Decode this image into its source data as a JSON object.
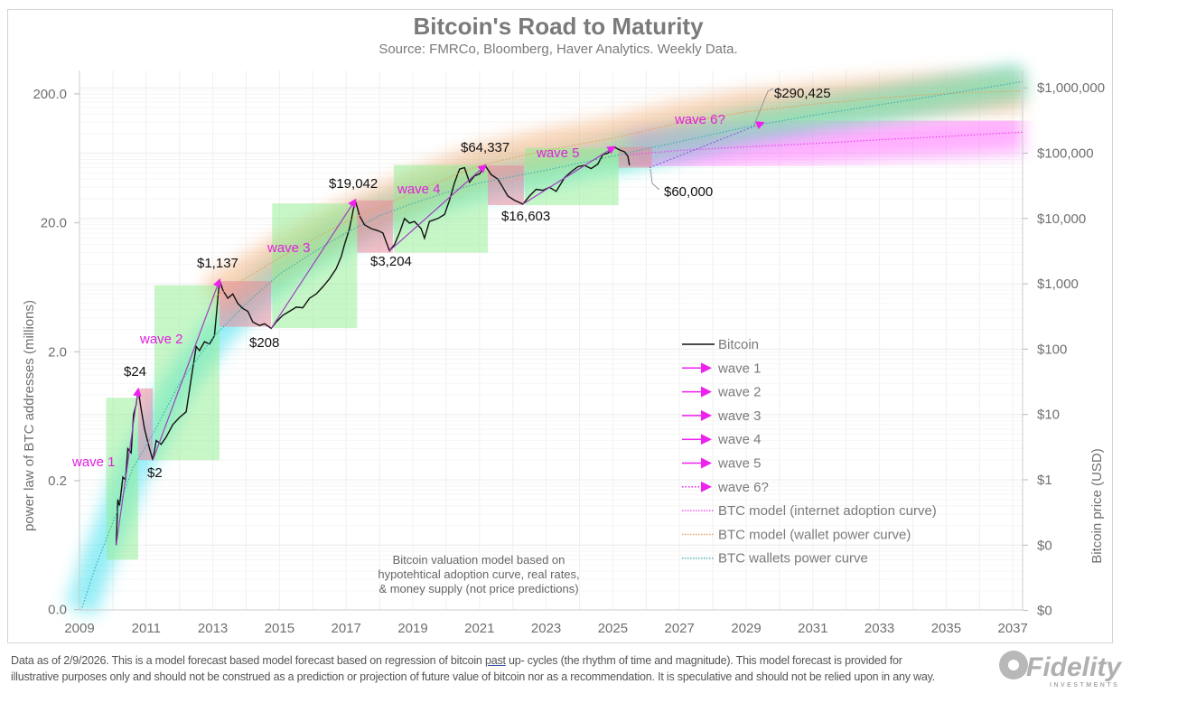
{
  "chart_data": {
    "type": "line",
    "title": "Bitcoin's Road to Maturity",
    "subtitle": "Source: FMRCo, Bloomberg, Haver Analytics. Weekly Data.",
    "xlabel": "",
    "ylabel_left": "power law of BTC addresses (millions)",
    "ylabel_right": "Bitcoin price (USD)",
    "x_ticks": [
      "2009",
      "2011",
      "2013",
      "2015",
      "2017",
      "2019",
      "2021",
      "2023",
      "2025",
      "2027",
      "2029",
      "2031",
      "2033",
      "2035",
      "2037"
    ],
    "xlim": [
      2009,
      2037.3
    ],
    "y_right_scale": "log",
    "y_right_ticks": [
      {
        "value": 0.01,
        "label": "$0"
      },
      {
        "value": 0.1,
        "label": "$0"
      },
      {
        "value": 1,
        "label": "$1"
      },
      {
        "value": 10,
        "label": "$10"
      },
      {
        "value": 100,
        "label": "$100"
      },
      {
        "value": 1000,
        "label": "$1,000"
      },
      {
        "value": 10000,
        "label": "$10,000"
      },
      {
        "value": 100000,
        "label": "$100,000"
      },
      {
        "value": 1000000,
        "label": "$1,000,000"
      }
    ],
    "y_left_scale": "log",
    "y_left_ticks": [
      {
        "value": 0.02,
        "label": "0.0"
      },
      {
        "value": 0.2,
        "label": "0.2"
      },
      {
        "value": 2,
        "label": "2.0"
      },
      {
        "value": 20,
        "label": "20.0"
      },
      {
        "value": 200,
        "label": "200.0"
      }
    ],
    "grid": true,
    "legend_position": "right-middle",
    "series": [
      {
        "name": "Bitcoin",
        "color": "#111111",
        "style": "solid",
        "points": [
          [
            2010.1,
            0.1
          ],
          [
            2010.15,
            0.5
          ],
          [
            2010.2,
            0.4
          ],
          [
            2010.3,
            1.1
          ],
          [
            2010.38,
            1.0
          ],
          [
            2010.45,
            3
          ],
          [
            2010.55,
            2.6
          ],
          [
            2010.62,
            10
          ],
          [
            2010.7,
            14
          ],
          [
            2010.76,
            24
          ],
          [
            2010.85,
            12
          ],
          [
            2010.95,
            6
          ],
          [
            2011.1,
            3
          ],
          [
            2011.2,
            2
          ],
          [
            2011.3,
            4
          ],
          [
            2011.45,
            3.5
          ],
          [
            2011.6,
            4.5
          ],
          [
            2011.8,
            7
          ],
          [
            2012.0,
            9
          ],
          [
            2012.2,
            11
          ],
          [
            2012.35,
            35
          ],
          [
            2012.5,
            110
          ],
          [
            2012.6,
            95
          ],
          [
            2012.75,
            130
          ],
          [
            2012.9,
            120
          ],
          [
            2013.05,
            160
          ],
          [
            2013.2,
            1137
          ],
          [
            2013.3,
            800
          ],
          [
            2013.45,
            600
          ],
          [
            2013.6,
            700
          ],
          [
            2013.75,
            500
          ],
          [
            2013.9,
            420
          ],
          [
            2014.05,
            380
          ],
          [
            2014.2,
            260
          ],
          [
            2014.4,
            230
          ],
          [
            2014.55,
            245
          ],
          [
            2014.75,
            208
          ],
          [
            2014.9,
            260
          ],
          [
            2015.1,
            330
          ],
          [
            2015.3,
            380
          ],
          [
            2015.5,
            440
          ],
          [
            2015.7,
            430
          ],
          [
            2015.9,
            600
          ],
          [
            2016.1,
            700
          ],
          [
            2016.3,
            900
          ],
          [
            2016.5,
            1200
          ],
          [
            2016.7,
            1700
          ],
          [
            2016.85,
            2600
          ],
          [
            2016.95,
            4000
          ],
          [
            2017.1,
            7000
          ],
          [
            2017.27,
            19042
          ],
          [
            2017.4,
            11000
          ],
          [
            2017.55,
            8000
          ],
          [
            2017.75,
            7000
          ],
          [
            2017.95,
            6500
          ],
          [
            2018.1,
            6000
          ],
          [
            2018.3,
            3204
          ],
          [
            2018.45,
            4000
          ],
          [
            2018.6,
            6000
          ],
          [
            2018.75,
            10000
          ],
          [
            2018.9,
            8500
          ],
          [
            2019.05,
            9000
          ],
          [
            2019.25,
            7000
          ],
          [
            2019.35,
            5000
          ],
          [
            2019.5,
            9000
          ],
          [
            2019.75,
            10000
          ],
          [
            2019.95,
            11500
          ],
          [
            2020.1,
            19000
          ],
          [
            2020.25,
            35000
          ],
          [
            2020.4,
            57000
          ],
          [
            2020.55,
            60000
          ],
          [
            2020.7,
            36000
          ],
          [
            2020.85,
            45000
          ],
          [
            2021.0,
            48000
          ],
          [
            2021.17,
            64337
          ],
          [
            2021.35,
            47000
          ],
          [
            2021.55,
            40000
          ],
          [
            2021.7,
            30000
          ],
          [
            2021.85,
            22000
          ],
          [
            2022.05,
            19000
          ],
          [
            2022.3,
            16603
          ],
          [
            2022.5,
            22000
          ],
          [
            2022.7,
            28000
          ],
          [
            2022.9,
            27000
          ],
          [
            2023.1,
            30000
          ],
          [
            2023.3,
            26000
          ],
          [
            2023.55,
            42000
          ],
          [
            2023.75,
            52000
          ],
          [
            2023.95,
            62000
          ],
          [
            2024.15,
            65000
          ],
          [
            2024.35,
            58000
          ],
          [
            2024.55,
            68000
          ],
          [
            2024.7,
            95000
          ],
          [
            2024.85,
            100000
          ],
          [
            2025.04,
            124000
          ],
          [
            2025.2,
            112000
          ],
          [
            2025.35,
            105000
          ],
          [
            2025.45,
            90000
          ],
          [
            2025.5,
            65000
          ]
        ]
      },
      {
        "name": "BTC model (internet adoption curve)",
        "color": "#ee44ee",
        "style": "dotted",
        "points": [
          [
            2025.5,
            95000
          ],
          [
            2027,
            110000
          ],
          [
            2029,
            125000
          ],
          [
            2031,
            140000
          ],
          [
            2033,
            160000
          ],
          [
            2035,
            180000
          ],
          [
            2037.3,
            210000
          ]
        ]
      },
      {
        "name": "BTC model (wallet power curve)",
        "color": "#e8a060",
        "style": "dotted",
        "points": [
          [
            2013,
            600
          ],
          [
            2015,
            2500
          ],
          [
            2017,
            9000
          ],
          [
            2019,
            25000
          ],
          [
            2021,
            65000
          ],
          [
            2023,
            110000
          ],
          [
            2025,
            170000
          ],
          [
            2027,
            290425
          ],
          [
            2029,
            430000
          ],
          [
            2031,
            560000
          ],
          [
            2033,
            700000
          ],
          [
            2035,
            820000
          ],
          [
            2037.3,
            900000
          ]
        ]
      },
      {
        "name": "BTC wallets power curve",
        "color": "#40b0b0",
        "style": "dotted",
        "points": [
          [
            2009.05,
            0.01
          ],
          [
            2009.5,
            0.05
          ],
          [
            2010.1,
            0.3
          ],
          [
            2010.6,
            1.5
          ],
          [
            2011.2,
            5
          ],
          [
            2012,
            30
          ],
          [
            2013,
            150
          ],
          [
            2014,
            500
          ],
          [
            2015,
            1400
          ],
          [
            2016,
            3000
          ],
          [
            2017,
            6000
          ],
          [
            2018,
            11000
          ],
          [
            2019,
            17000
          ],
          [
            2020,
            25000
          ],
          [
            2021,
            35000
          ],
          [
            2023,
            55000
          ],
          [
            2025,
            90000
          ],
          [
            2027,
            150000
          ],
          [
            2029,
            250000
          ],
          [
            2031,
            380000
          ],
          [
            2033,
            550000
          ],
          [
            2035,
            800000
          ],
          [
            2037.3,
            1250000
          ]
        ]
      }
    ],
    "waves": [
      {
        "name": "wave 1",
        "from": [
          2010.1,
          0.1
        ],
        "to": [
          2010.76,
          24
        ],
        "style": "solid"
      },
      {
        "name": "wave 2",
        "from": [
          2011.2,
          2
        ],
        "to": [
          2013.2,
          1137
        ],
        "style": "solid"
      },
      {
        "name": "wave 3",
        "from": [
          2014.75,
          208
        ],
        "to": [
          2017.27,
          19042
        ],
        "style": "solid"
      },
      {
        "name": "wave 4",
        "from": [
          2018.3,
          3204
        ],
        "to": [
          2021.17,
          64337
        ],
        "style": "solid"
      },
      {
        "name": "wave 5",
        "from": [
          2022.3,
          16603
        ],
        "to": [
          2025.04,
          124000
        ],
        "style": "solid"
      },
      {
        "name": "wave 6?",
        "from": [
          2026.1,
          60000
        ],
        "to": [
          2029.5,
          290425
        ],
        "style": "dotted"
      }
    ],
    "phases": [
      {
        "kind": "up",
        "x": [
          2009.8,
          2010.76
        ],
        "y": [
          0.06,
          18
        ]
      },
      {
        "kind": "down",
        "x": [
          2010.76,
          2011.2
        ],
        "y": [
          2,
          25
        ]
      },
      {
        "kind": "up",
        "x": [
          2011.25,
          2013.2
        ],
        "y": [
          2,
          950
        ]
      },
      {
        "kind": "down",
        "x": [
          2013.2,
          2014.75
        ],
        "y": [
          220,
          1100
        ]
      },
      {
        "kind": "up",
        "x": [
          2014.78,
          2017.33
        ],
        "y": [
          210,
          17000
        ]
      },
      {
        "kind": "down",
        "x": [
          2017.33,
          2018.4
        ],
        "y": [
          3000,
          19000
        ]
      },
      {
        "kind": "up",
        "x": [
          2018.43,
          2021.25
        ],
        "y": [
          3000,
          66000
        ]
      },
      {
        "kind": "down",
        "x": [
          2021.25,
          2022.33
        ],
        "y": [
          16000,
          65000
        ]
      },
      {
        "kind": "up",
        "x": [
          2022.36,
          2025.17
        ],
        "y": [
          16000,
          120000
        ]
      },
      {
        "kind": "down",
        "x": [
          2025.17,
          2026.17
        ],
        "y": [
          60000,
          125000
        ]
      }
    ],
    "annotations": [
      "$24",
      "$2",
      "$1,137",
      "$208",
      "$19,042",
      "$3,204",
      "$64,337",
      "$16,603",
      "$60,000",
      "$290,425"
    ],
    "note": [
      "Bitcoin valuation model based on",
      "hypotehtical adoption curve, real rates,",
      "& money supply (not price predictions)"
    ],
    "colors": {
      "up_box": "#90ee90",
      "down_box": "#e88a9a",
      "wave_arrow": "#ee22ee",
      "bitcoin": "#111111"
    }
  },
  "footer": {
    "text_before": "Data as of 2/9/2026. This is a model forecast based model forecast based on regression of bitcoin ",
    "underlined": "past",
    "text_after": " up- cycles (the rhythm of time and magnitude). This model forecast is provided for illustrative purposes only and should not be construed as a prediction or projection of future value of bitcoin nor as a recommendation. It is speculative and should not be relied upon in any way."
  },
  "logo": {
    "brand": "Fidelity",
    "tagline": "INVESTMENTS"
  }
}
